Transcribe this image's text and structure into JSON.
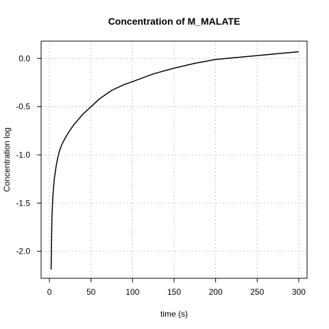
{
  "chart_data": {
    "type": "line",
    "title": "Concentration of M_MALATE",
    "xlabel": "time (s)",
    "ylabel": "Concentration log",
    "xlim": [
      -10,
      310
    ],
    "ylim": [
      -2.28,
      0.18
    ],
    "x_ticks": [
      0,
      50,
      100,
      150,
      200,
      250,
      300
    ],
    "y_ticks": [
      0.0,
      -0.5,
      -1.0,
      -1.5,
      -2.0
    ],
    "x_tick_labels": [
      "0",
      "50",
      "100",
      "150",
      "200",
      "250",
      "300"
    ],
    "y_tick_labels": [
      "0.0",
      "-0.5",
      "-1.0",
      "-1.5",
      "-2.0"
    ],
    "grid": true,
    "series": [
      {
        "color": "#000000",
        "x": [
          2,
          3,
          4,
          5,
          6,
          8,
          10,
          12,
          15,
          20,
          25,
          30,
          40,
          50,
          60,
          75,
          90,
          100,
          125,
          150,
          175,
          200,
          225,
          250,
          275,
          300
        ],
        "y": [
          -2.19,
          -1.65,
          -1.45,
          -1.33,
          -1.24,
          -1.12,
          -1.03,
          -0.96,
          -0.89,
          -0.81,
          -0.74,
          -0.68,
          -0.58,
          -0.5,
          -0.42,
          -0.33,
          -0.27,
          -0.24,
          -0.16,
          -0.1,
          -0.05,
          -0.01,
          0.01,
          0.03,
          0.05,
          0.07
        ]
      }
    ]
  }
}
